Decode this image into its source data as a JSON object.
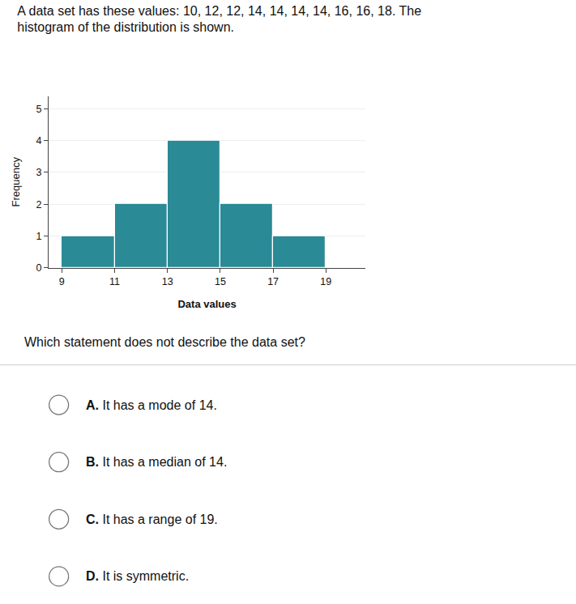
{
  "chart_data": {
    "type": "histogram",
    "title": "A data set has these values: 10, 12, 12, 14, 14, 14, 14, 16, 16, 18. The",
    "subtitle": "histogram of the distribution is shown.",
    "bins": [
      9,
      11,
      13,
      15,
      17,
      19
    ],
    "values": [
      1,
      2,
      4,
      2,
      1
    ],
    "color": "#2a8a96",
    "xlabel": "Data values",
    "ylabel": "Frequency",
    "xlim": [
      8.5,
      20.5
    ],
    "xticks": [
      9,
      11,
      13,
      15,
      17,
      19
    ],
    "ylim": [
      0,
      5.4
    ],
    "yticks": [
      0,
      1,
      2,
      3,
      4,
      5
    ],
    "grid": "y",
    "annotations": [
      "Which statement does not describe the data set?",
      "A. It has a mode of 14.",
      "B. It has a median of 14.",
      "C. It has a range of 19.",
      "D. It is symmetric."
    ]
  }
}
